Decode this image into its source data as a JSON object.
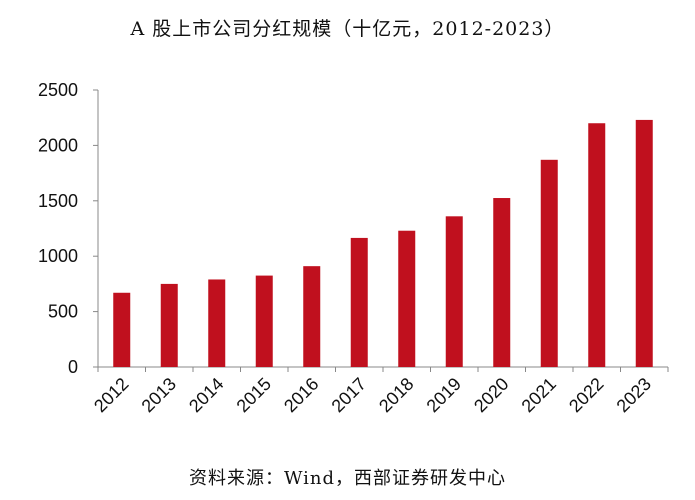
{
  "chart_data": {
    "type": "bar",
    "title": "A 股上市公司分红规模（十亿元，2012-2023）",
    "xlabel": "",
    "ylabel": "",
    "categories": [
      "2012",
      "2013",
      "2014",
      "2015",
      "2016",
      "2017",
      "2018",
      "2019",
      "2020",
      "2021",
      "2022",
      "2023"
    ],
    "values": [
      670,
      750,
      790,
      825,
      910,
      1165,
      1230,
      1360,
      1525,
      1870,
      2200,
      2230
    ],
    "ylim": [
      0,
      2500
    ],
    "yticks": [
      0,
      500,
      1000,
      1500,
      2000,
      2500
    ],
    "grid": false,
    "legend": "none",
    "bar_color": "#C0101E",
    "source": "资料来源：Wind，西部证券研发中心"
  }
}
